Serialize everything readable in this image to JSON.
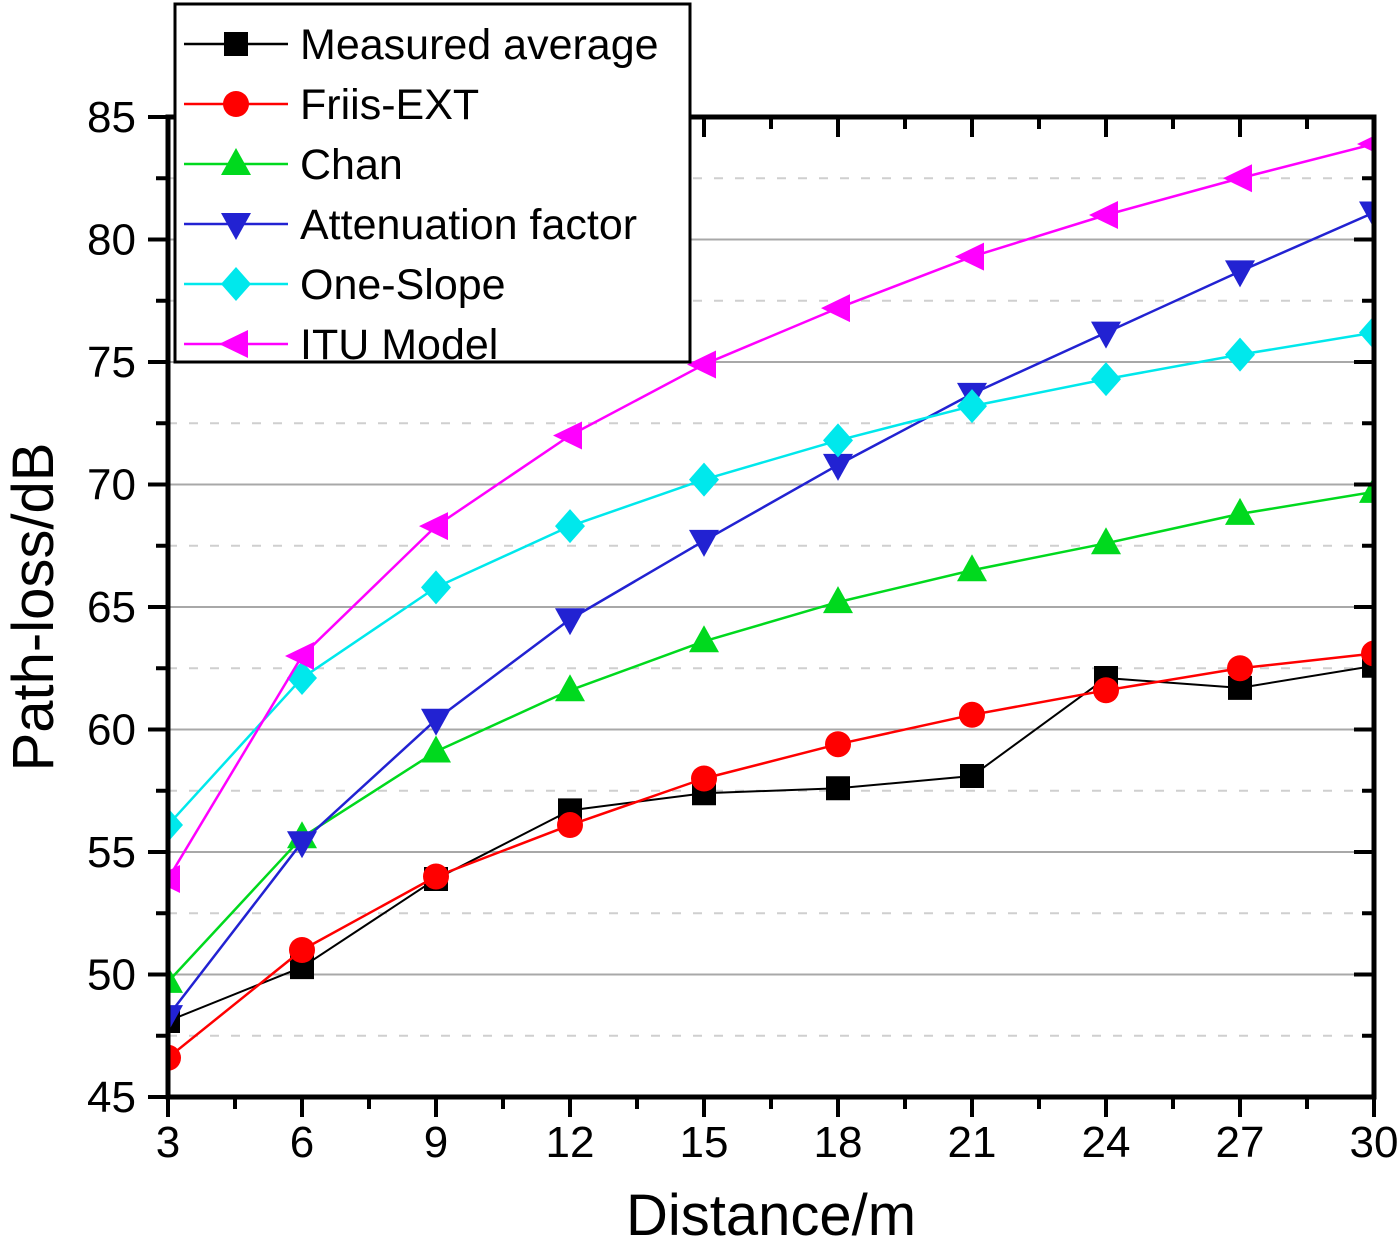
{
  "figure": {
    "background": "#ffffff",
    "frame_color": "#000000",
    "grid_major_color": "#a8a8a8",
    "grid_minor_color": "#cfcfcf",
    "legend_border_color": "#000000",
    "legend_background": "#ffffff"
  },
  "chart_data": {
    "type": "line",
    "title": "",
    "xlabel": "Distance/m",
    "ylabel": "Path-loss/dB",
    "xlim": [
      3,
      30
    ],
    "ylim": [
      45,
      85
    ],
    "x_major_ticks": [
      3,
      6,
      9,
      12,
      15,
      18,
      21,
      24,
      27,
      30
    ],
    "y_major_ticks": [
      45,
      50,
      55,
      60,
      65,
      70,
      75,
      80,
      85
    ],
    "x_minor_step": 1.5,
    "y_minor_step": 2.5,
    "grid": {
      "major_horizontal": true,
      "minor_horizontal_dashed": true,
      "vertical": false
    },
    "legend_position": "top-left",
    "x": [
      3,
      6,
      9,
      12,
      15,
      18,
      21,
      24,
      27,
      30
    ],
    "series": [
      {
        "name": "Measured average",
        "marker": "square",
        "color": "#000000",
        "values": [
          48.1,
          50.3,
          53.9,
          56.7,
          57.4,
          57.6,
          58.1,
          62.1,
          61.7,
          62.6
        ]
      },
      {
        "name": "Friis-EXT",
        "marker": "circle",
        "color": "#ff0000",
        "values": [
          46.6,
          51.0,
          54.0,
          56.1,
          58.0,
          59.4,
          60.6,
          61.6,
          62.5,
          63.1
        ]
      },
      {
        "name": "Chan",
        "marker": "triangle-up",
        "color": "#00d91e",
        "values": [
          49.7,
          55.6,
          59.1,
          61.6,
          63.6,
          65.2,
          66.5,
          67.6,
          68.8,
          69.7
        ]
      },
      {
        "name": "Attenuation factor",
        "marker": "triangle-down",
        "color": "#2222d2",
        "values": [
          48.3,
          55.4,
          60.4,
          64.5,
          67.7,
          70.8,
          73.7,
          76.2,
          78.7,
          81.1
        ]
      },
      {
        "name": "One-Slope",
        "marker": "diamond",
        "color": "#00e8ec",
        "values": [
          56.1,
          62.1,
          65.8,
          68.3,
          70.2,
          71.8,
          73.2,
          74.3,
          75.3,
          76.2
        ]
      },
      {
        "name": "ITU Model",
        "marker": "triangle-left",
        "color": "#ff00ff",
        "values": [
          53.9,
          63.0,
          68.3,
          72.0,
          74.9,
          77.2,
          79.3,
          81.0,
          82.5,
          83.9
        ]
      }
    ]
  }
}
